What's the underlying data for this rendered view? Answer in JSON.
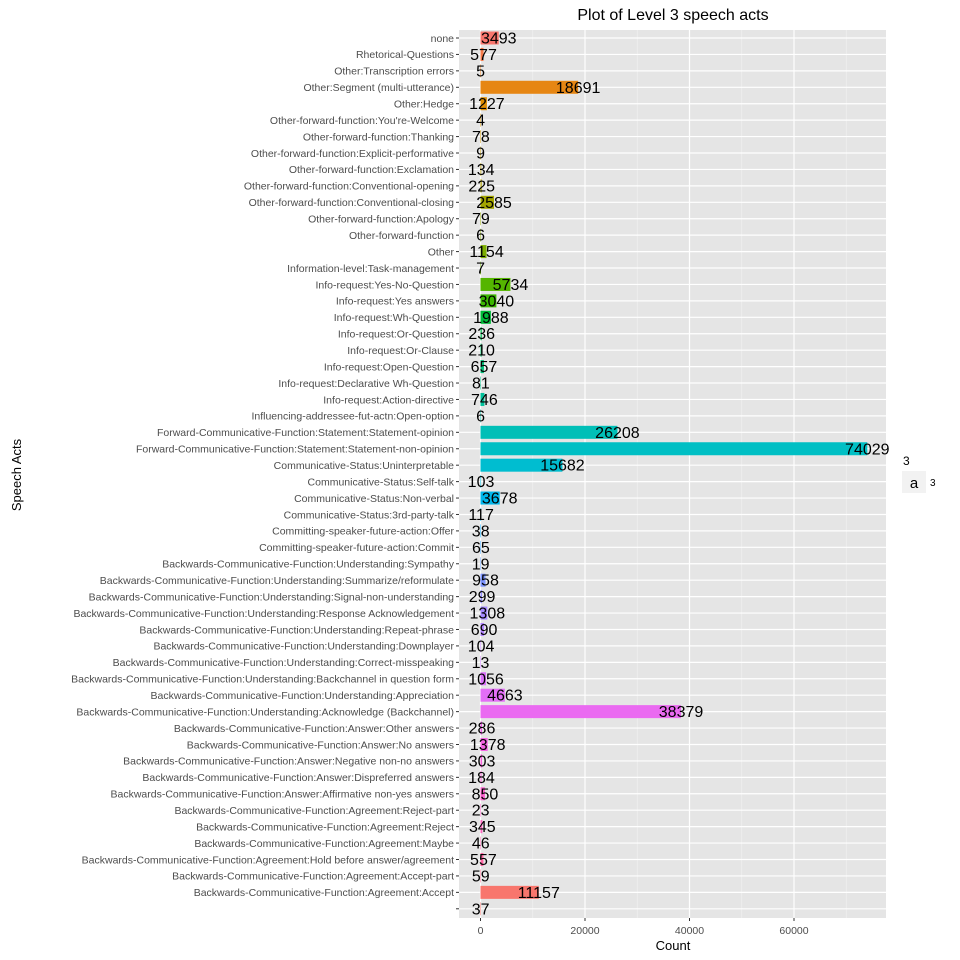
{
  "chart_data": {
    "type": "bar",
    "orientation": "horizontal",
    "title": "Plot of Level 3 speech acts",
    "xlabel": "Count",
    "ylabel": "Speech Acts",
    "xlim": [
      -5000,
      78000
    ],
    "x_ticks": [
      0,
      20000,
      40000,
      60000
    ],
    "x_tick_labels": [
      "0",
      "20000",
      "40000",
      "60000"
    ],
    "grid": true,
    "legend": {
      "title": "3",
      "key_glyph": "a",
      "label": "3",
      "position": "right"
    },
    "categories": [
      "none",
      "Rhetorical-Questions",
      "Other:Transcription errors",
      "Other:Segment (multi-utterance)",
      "Other:Hedge",
      "Other-forward-function:You're-Welcome",
      "Other-forward-function:Thanking",
      "Other-forward-function:Explicit-performative",
      "Other-forward-function:Exclamation",
      "Other-forward-function:Conventional-opening",
      "Other-forward-function:Conventional-closing",
      "Other-forward-function:Apology",
      "Other-forward-function",
      "Other",
      "Information-level:Task-management",
      "Info-request:Yes-No-Question",
      "Info-request:Yes answers",
      "Info-request:Wh-Question",
      "Info-request:Or-Question",
      "Info-request:Or-Clause",
      "Info-request:Open-Question",
      "Info-request:Declarative Wh-Question",
      "Info-request:Action-directive",
      "Influencing-addressee-fut-actn:Open-option",
      "Forward-Communicative-Function:Statement:Statement-opinion",
      "Forward-Communicative-Function:Statement:Statement-non-opinion",
      "Communicative-Status:Uninterpretable",
      "Communicative-Status:Self-talk",
      "Communicative-Status:Non-verbal",
      "Communicative-Status:3rd-party-talk",
      "Committing-speaker-future-action:Offer",
      "Committing-speaker-future-action:Commit",
      "Backwards-Communicative-Function:Understanding:Sympathy",
      "Backwards-Communicative-Function:Understanding:Summarize/reformulate",
      "Backwards-Communicative-Function:Understanding:Signal-non-understanding",
      "Backwards-Communicative-Function:Understanding:Response Acknowledgement",
      "Backwards-Communicative-Function:Understanding:Repeat-phrase",
      "Backwards-Communicative-Function:Understanding:Downplayer",
      "Backwards-Communicative-Function:Understanding:Correct-misspeaking",
      "Backwards-Communicative-Function:Understanding:Backchannel in question form",
      "Backwards-Communicative-Function:Understanding:Appreciation",
      "Backwards-Communicative-Function:Understanding:Acknowledge (Backchannel)",
      "Backwards-Communicative-Function:Answer:Other answers",
      "Backwards-Communicative-Function:Answer:No answers",
      "Backwards-Communicative-Function:Answer:Negative non-no answers",
      "Backwards-Communicative-Function:Answer:Dispreferred answers",
      "Backwards-Communicative-Function:Answer:Affirmative non-yes answers",
      "Backwards-Communicative-Function:Agreement:Reject-part",
      "Backwards-Communicative-Function:Agreement:Reject",
      "Backwards-Communicative-Function:Agreement:Maybe",
      "Backwards-Communicative-Function:Agreement:Hold before answer/agreement",
      "Backwards-Communicative-Function:Agreement:Accept-part",
      "Backwards-Communicative-Function:Agreement:Accept",
      ""
    ],
    "values": [
      3493,
      577,
      5,
      18691,
      1227,
      4,
      78,
      9,
      134,
      225,
      2585,
      79,
      6,
      1154,
      7,
      5734,
      3040,
      1988,
      236,
      210,
      657,
      81,
      746,
      6,
      26208,
      74029,
      15682,
      103,
      3678,
      117,
      38,
      65,
      19,
      958,
      299,
      1308,
      690,
      104,
      13,
      1056,
      4663,
      38379,
      286,
      1378,
      303,
      184,
      850,
      23,
      345,
      46,
      557,
      59,
      11157,
      37
    ],
    "colors": [
      "#F8766D",
      "#F47A49",
      "#EE7E14",
      "#E68613",
      "#DE8C00",
      "#D59300",
      "#CD9600",
      "#C49A00",
      "#BA9E00",
      "#AFA100",
      "#A3A500",
      "#96A900",
      "#87AC00",
      "#7CAE00",
      "#6BB100",
      "#55B500",
      "#3BB800",
      "#00BA38",
      "#00BC53",
      "#00BE67",
      "#00BF78",
      "#00C08B",
      "#00C19A",
      "#00C1A9",
      "#00BFB7",
      "#00BFC4",
      "#00BDD0",
      "#00BADE",
      "#00B6EB",
      "#00B0F6",
      "#00A9FF",
      "#35A2FF",
      "#619CFF",
      "#7F96FF",
      "#9590FF",
      "#A58AFF",
      "#B385FF",
      "#C17FFF",
      "#CF78FF",
      "#DB72FB",
      "#E36EF6",
      "#EA6AF1",
      "#F066EA",
      "#F564E3",
      "#F863DC",
      "#FB61D7",
      "#FD61D1",
      "#FF62C8",
      "#FF63BF",
      "#FF65B6",
      "#FF67A4",
      "#FC6B93",
      "#F8766D",
      "#F8766D"
    ]
  }
}
